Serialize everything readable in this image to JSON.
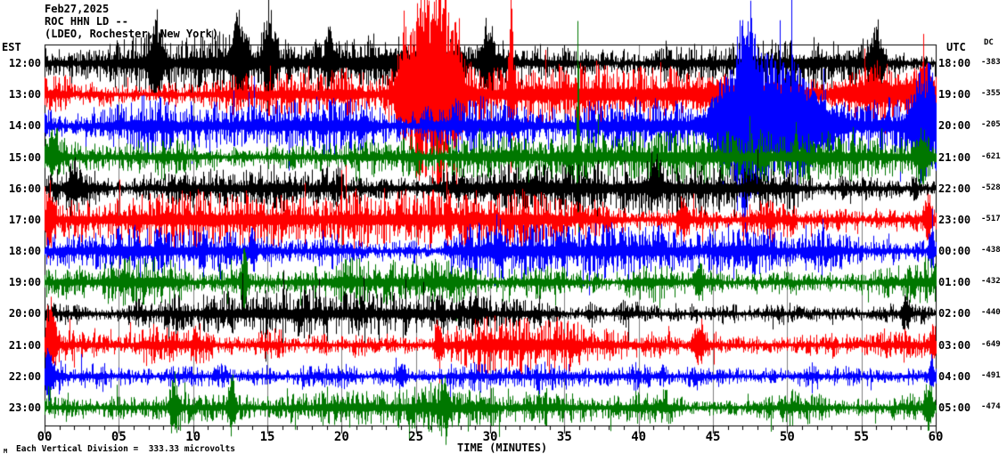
{
  "header": {
    "date": "Feb27,2025",
    "station": "ROC HHN LD --",
    "location": "(LDEO, Rochester, New York)"
  },
  "left_axis": {
    "tz": "EST"
  },
  "right_axis": {
    "tz": "UTC",
    "dc_label": "DC"
  },
  "x_axis": {
    "title": "TIME (MINUTES)",
    "ticks": [
      "00",
      "05",
      "10",
      "15",
      "20",
      "25",
      "30",
      "35",
      "40",
      "45",
      "50",
      "55",
      "60"
    ],
    "minutes_range": [
      0,
      60
    ],
    "minor_tick_every_min": 1,
    "major_tick_every_min": 5,
    "grid": "vertical gray lines every 5 minutes"
  },
  "footer": {
    "scale_note": "Each Vertical Division =  333.33 microvolts",
    "watermark": "M"
  },
  "colors": {
    "trace_cycle": [
      "#000000",
      "#ff0000",
      "#0000ff",
      "#007700"
    ],
    "grid": "#808080",
    "frame": "#000000",
    "background": "#ffffff",
    "text": "#000000"
  },
  "chart_data": {
    "type": "line",
    "subtype": "helicorder-seismogram",
    "title": "ROC HHN LD -- (LDEO, Rochester, New York) Feb27,2025",
    "xlabel": "TIME (MINUTES)",
    "xlim": [
      0,
      60
    ],
    "rows_are_hours": true,
    "seed": 42,
    "rows": [
      {
        "est": "12:00",
        "utc": "18:00",
        "dc": "-383",
        "color": "#000000",
        "base_amp": 13,
        "events": [
          [
            7.5,
            0.3,
            42
          ],
          [
            13.1,
            0.4,
            42
          ],
          [
            15.1,
            0.25,
            52
          ],
          [
            19.2,
            0.2,
            32
          ],
          [
            29.8,
            0.3,
            40
          ],
          [
            56,
            0.3,
            38
          ],
          [
            25,
            3,
            6
          ]
        ]
      },
      {
        "est": "13:00",
        "utc": "19:00",
        "dc": "-355",
        "color": "#ff0000",
        "base_amp": 14,
        "events": [
          [
            24.2,
            0.4,
            48
          ],
          [
            25.4,
            0.5,
            110
          ],
          [
            26.6,
            0.4,
            125
          ],
          [
            27.7,
            0.3,
            80
          ],
          [
            31.4,
            0.12,
            110
          ],
          [
            47,
            2.5,
            14
          ],
          [
            56,
            2.5,
            12
          ],
          [
            59.3,
            0.4,
            28
          ]
        ]
      },
      {
        "est": "14:00",
        "utc": "20:00",
        "dc": "-205",
        "color": "#0000ff",
        "base_amp": 12,
        "events": [
          [
            46.5,
            1.2,
            55
          ],
          [
            47.2,
            0.3,
            85
          ],
          [
            48.5,
            1.5,
            45
          ],
          [
            51,
            1.5,
            38
          ],
          [
            58.8,
            0.4,
            40
          ],
          [
            59.6,
            0.3,
            50
          ]
        ]
      },
      {
        "est": "15:00",
        "utc": "21:00",
        "dc": "-621",
        "color": "#007700",
        "base_amp": 11,
        "events": [
          [
            35.9,
            0.06,
            155
          ],
          [
            0.5,
            0.3,
            18
          ],
          [
            59,
            0.3,
            22
          ]
        ]
      },
      {
        "est": "16:00",
        "utc": "22:00",
        "dc": "-528",
        "color": "#000000",
        "base_amp": 11,
        "events": [
          [
            2,
            0.3,
            16
          ],
          [
            41,
            0.2,
            22
          ],
          [
            30,
            4,
            3
          ]
        ]
      },
      {
        "est": "17:00",
        "utc": "23:00",
        "dc": "-517",
        "color": "#ff0000",
        "base_amp": 12,
        "events": [
          [
            0.3,
            0.2,
            32
          ],
          [
            27.2,
            0.12,
            28
          ],
          [
            43,
            0.25,
            20
          ],
          [
            59.5,
            0.2,
            28
          ]
        ]
      },
      {
        "est": "18:00",
        "utc": "00:00",
        "dc": "-438",
        "color": "#0000ff",
        "base_amp": 11,
        "events": [
          [
            14,
            0.15,
            20
          ],
          [
            30.5,
            0.2,
            18
          ],
          [
            59.7,
            0.15,
            26
          ]
        ]
      },
      {
        "est": "19:00",
        "utc": "01:00",
        "dc": "-432",
        "color": "#007700",
        "base_amp": 10,
        "events": [
          [
            13.4,
            0.18,
            32
          ],
          [
            44,
            0.2,
            16
          ]
        ]
      },
      {
        "est": "20:00",
        "utc": "02:00",
        "dc": "-440",
        "color": "#000000",
        "base_amp": 10,
        "events": [
          [
            29,
            0.2,
            16
          ],
          [
            58,
            0.2,
            18
          ]
        ]
      },
      {
        "est": "21:00",
        "utc": "03:00",
        "dc": "-649",
        "color": "#ff0000",
        "base_amp": 12,
        "events": [
          [
            0.4,
            0.25,
            42
          ],
          [
            26.5,
            0.15,
            22
          ],
          [
            44,
            0.3,
            20
          ],
          [
            59.8,
            0.12,
            26
          ]
        ]
      },
      {
        "est": "22:00",
        "utc": "04:00",
        "dc": "-491",
        "color": "#0000ff",
        "base_amp": 10,
        "events": [
          [
            0.3,
            0.2,
            26
          ],
          [
            24,
            0.2,
            16
          ],
          [
            59.7,
            0.12,
            22
          ]
        ]
      },
      {
        "est": "23:00",
        "utc": "05:00",
        "dc": "-474",
        "color": "#007700",
        "base_amp": 10,
        "events": [
          [
            8.7,
            0.2,
            26
          ],
          [
            12.6,
            0.18,
            32
          ],
          [
            27,
            0.2,
            18
          ],
          [
            59.5,
            0.2,
            22
          ]
        ]
      }
    ]
  }
}
